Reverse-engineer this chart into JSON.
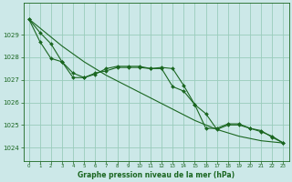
{
  "title": "Graphe pression niveau de la mer (hPa)",
  "background_color": "#cce8e8",
  "grid_color": "#99ccbb",
  "line_color": "#1a6620",
  "marker_color": "#1a6620",
  "xlim": [
    -0.5,
    23.5
  ],
  "ylim": [
    1023.4,
    1030.4
  ],
  "yticks": [
    1024,
    1025,
    1026,
    1027,
    1028,
    1029
  ],
  "xticks": [
    0,
    1,
    2,
    3,
    4,
    5,
    6,
    7,
    8,
    9,
    10,
    11,
    12,
    13,
    14,
    15,
    16,
    17,
    18,
    19,
    20,
    21,
    22,
    23
  ],
  "series1_x": [
    0,
    1,
    2,
    3,
    4,
    5,
    6,
    7,
    8,
    9,
    10,
    11,
    12,
    13,
    14,
    15,
    16,
    17,
    18,
    19,
    20,
    21,
    22,
    23
  ],
  "series1_y": [
    1029.7,
    1029.1,
    1028.6,
    1027.8,
    1027.3,
    1027.1,
    1027.3,
    1027.4,
    1027.55,
    1027.55,
    1027.55,
    1027.5,
    1027.55,
    1027.5,
    1026.75,
    1025.9,
    1024.85,
    1024.85,
    1025.05,
    1025.05,
    1024.85,
    1024.75,
    1024.45,
    1024.2
  ],
  "series2_x": [
    0,
    1,
    2,
    3,
    4,
    5,
    6,
    7,
    8,
    9,
    10,
    11,
    12,
    13,
    14,
    15,
    16,
    17,
    18,
    19,
    20,
    21,
    22,
    23
  ],
  "series2_y": [
    1029.7,
    1028.7,
    1027.95,
    1027.8,
    1027.1,
    1027.1,
    1027.25,
    1027.5,
    1027.6,
    1027.6,
    1027.6,
    1027.5,
    1027.5,
    1026.7,
    1026.5,
    1025.9,
    1025.5,
    1024.8,
    1025.0,
    1025.0,
    1024.85,
    1024.7,
    1024.5,
    1024.2
  ],
  "series3_x": [
    0,
    1,
    2,
    3,
    4,
    5,
    6,
    7,
    8,
    9,
    10,
    11,
    12,
    13,
    14,
    15,
    16,
    17,
    18,
    19,
    20,
    21,
    22,
    23
  ],
  "series3_y": [
    1029.7,
    1029.3,
    1028.9,
    1028.5,
    1028.15,
    1027.8,
    1027.5,
    1027.2,
    1026.95,
    1026.7,
    1026.45,
    1026.2,
    1025.95,
    1025.7,
    1025.45,
    1025.2,
    1025.0,
    1024.8,
    1024.65,
    1024.5,
    1024.4,
    1024.3,
    1024.25,
    1024.2
  ]
}
